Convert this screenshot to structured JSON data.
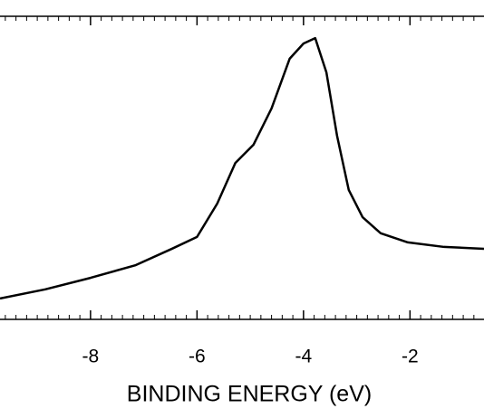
{
  "chart_data": {
    "type": "line",
    "x_label": "BINDING ENERGY (eV)",
    "x": [
      -9.7,
      -8.85,
      -8.0,
      -7.15,
      -6.47,
      -6.0,
      -5.62,
      -5.28,
      -4.94,
      -4.6,
      -4.26,
      -4.0,
      -3.78,
      -3.57,
      -3.37,
      -3.15,
      -2.89,
      -2.55,
      -2.04,
      -1.36,
      -0.61
    ],
    "series": [
      {
        "color": "#000000",
        "values": [
          6.9,
          9.9,
          13.7,
          17.9,
          23.3,
          27.2,
          38.2,
          51.6,
          57.6,
          69.6,
          86.0,
          91.0,
          92.8,
          81.5,
          60.6,
          42.7,
          33.7,
          28.4,
          25.4,
          23.9,
          23.3
        ]
      }
    ],
    "xlim": [
      -9.7,
      -0.61
    ],
    "ylim": [
      0,
      100
    ],
    "xticks": [
      -8,
      -6,
      -4,
      -2
    ],
    "xminorticks": [
      -9.6,
      -9.4,
      -9.2,
      -9.0,
      -8.8,
      -8.6,
      -8.4,
      -8.2,
      -7.8,
      -7.6,
      -7.4,
      -7.2,
      -7.0,
      -6.8,
      -6.6,
      -6.4,
      -6.2,
      -5.8,
      -5.6,
      -5.4,
      -5.2,
      -5.0,
      -4.8,
      -4.6,
      -4.4,
      -4.2,
      -3.8,
      -3.6,
      -3.4,
      -3.2,
      -3.0,
      -2.8,
      -2.6,
      -2.4,
      -2.2,
      -1.8,
      -1.6,
      -1.4,
      -1.2,
      -1.0,
      -0.8
    ]
  }
}
